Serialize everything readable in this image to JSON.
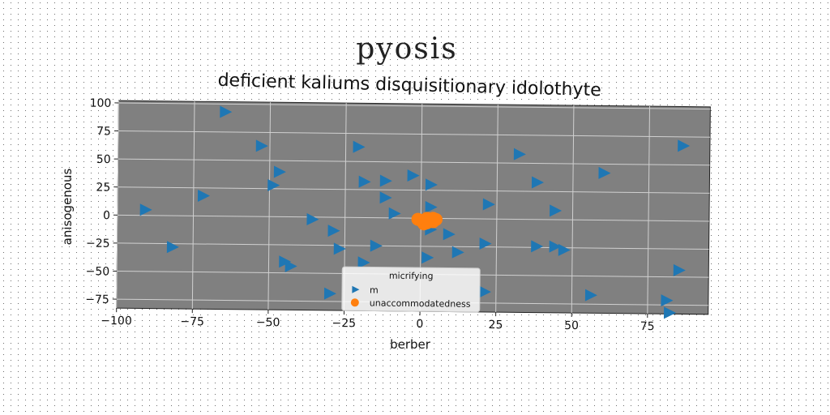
{
  "chart_data": {
    "type": "scatter",
    "suptitle": "pyosis",
    "title": "deficient kaliums disquisitionary idolothyte",
    "xlabel": "berber",
    "ylabel": "anisogenous",
    "xlim": [
      -100,
      95
    ],
    "ylim": [
      -83,
      102
    ],
    "xticks": [
      -100,
      -75,
      -50,
      -25,
      0,
      25,
      50,
      75
    ],
    "yticks": [
      -75,
      -50,
      -25,
      0,
      25,
      50,
      75,
      100
    ],
    "grid": true,
    "legend": {
      "title": "micrifying",
      "position": "lower-center"
    },
    "colors": {
      "axes_bg": "#808080",
      "grid": "#d0d0d0",
      "series1": "#1f77b4",
      "series2": "#ff7f0e"
    },
    "series": [
      {
        "name": "m",
        "marker": "triangle-right",
        "points": [
          [
            -65,
            93
          ],
          [
            -53,
            63
          ],
          [
            -47,
            40
          ],
          [
            -49,
            28
          ],
          [
            -72,
            18
          ],
          [
            -91,
            5
          ],
          [
            -82,
            -28
          ],
          [
            -45,
            -40
          ],
          [
            -43,
            -44
          ],
          [
            -36,
            -2
          ],
          [
            -29,
            -12
          ],
          [
            -27,
            -28
          ],
          [
            -30,
            -68
          ],
          [
            -21,
            63
          ],
          [
            -19,
            32
          ],
          [
            -12,
            33
          ],
          [
            -12,
            18
          ],
          [
            -9,
            4
          ],
          [
            -15,
            -25
          ],
          [
            -19,
            -40
          ],
          [
            -3,
            38
          ],
          [
            3,
            30
          ],
          [
            3,
            10
          ],
          [
            3,
            -10
          ],
          [
            9,
            -14
          ],
          [
            12,
            -30
          ],
          [
            2,
            -35
          ],
          [
            22,
            13
          ],
          [
            21,
            -22
          ],
          [
            32,
            58
          ],
          [
            38,
            33
          ],
          [
            44,
            8
          ],
          [
            38,
            -24
          ],
          [
            44,
            -24
          ],
          [
            47,
            -27
          ],
          [
            60,
            42
          ],
          [
            86,
            67
          ],
          [
            85,
            -44
          ],
          [
            56,
            -67
          ],
          [
            81,
            -71
          ],
          [
            82,
            -82
          ],
          [
            21,
            -65
          ]
        ]
      },
      {
        "name": "unaccommodatedness",
        "marker": "circle",
        "points": [
          [
            0,
            -2
          ],
          [
            2,
            0
          ],
          [
            4,
            -3
          ],
          [
            1,
            -5
          ],
          [
            3,
            -2
          ],
          [
            5,
            -1
          ],
          [
            2,
            -4
          ],
          [
            -1,
            -1
          ],
          [
            4,
            0
          ]
        ]
      }
    ]
  }
}
